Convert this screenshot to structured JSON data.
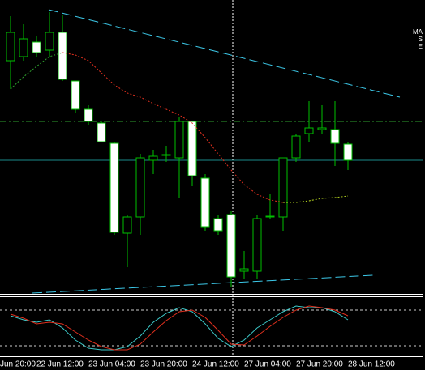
{
  "chart_data": [
    {
      "type": "candlestick",
      "categories": [
        "Jun 20:00",
        null,
        "22 Jun 12:00",
        null,
        null,
        null,
        "23 Jun 04:00",
        null,
        null,
        null,
        "23 Jun 20:00",
        null,
        null,
        null,
        "24 Jun 12:00",
        null,
        null,
        null,
        "27 Jun 04:00",
        null,
        null,
        null,
        "27 Jun 20:00",
        null,
        null,
        null,
        "28 Jun 12:00"
      ],
      "candles": [
        {
          "open": 287,
          "high": 342,
          "low": 252,
          "close": 322
        },
        {
          "open": 292,
          "high": 332,
          "low": 287,
          "close": 314
        },
        {
          "open": 310,
          "high": 317,
          "low": 292,
          "close": 297
        },
        {
          "open": 300,
          "high": 347,
          "low": 292,
          "close": 322
        },
        {
          "open": 322,
          "high": 344,
          "low": 262,
          "close": 264
        },
        {
          "open": 262,
          "high": 262,
          "low": 222,
          "close": 227
        },
        {
          "open": 227,
          "high": 232,
          "low": 207,
          "close": 212
        },
        {
          "open": 210,
          "high": 212,
          "low": 187,
          "close": 187
        },
        {
          "open": 185,
          "high": 187,
          "low": 72,
          "close": 75
        },
        {
          "open": 74,
          "high": 97,
          "low": 32,
          "close": 94
        },
        {
          "open": 94,
          "high": 172,
          "low": 72,
          "close": 167
        },
        {
          "open": 164,
          "high": 177,
          "low": 147,
          "close": 169
        },
        {
          "open": 170,
          "high": 182,
          "low": 162,
          "close": 171
        },
        {
          "open": 167,
          "high": 217,
          "low": 117,
          "close": 212
        },
        {
          "open": 212,
          "high": 212,
          "low": 132,
          "close": 145
        },
        {
          "open": 142,
          "high": 147,
          "low": 77,
          "close": 82
        },
        {
          "open": 92,
          "high": 97,
          "low": 72,
          "close": 77
        },
        {
          "open": 97,
          "high": 102,
          "low": 7,
          "close": 20
        },
        {
          "open": 27,
          "high": 52,
          "low": 17,
          "close": 30
        },
        {
          "open": 27,
          "high": 97,
          "low": 17,
          "close": 92
        },
        {
          "open": 94,
          "high": 122,
          "low": 92,
          "close": 95
        },
        {
          "open": 94,
          "high": 167,
          "low": 77,
          "close": 167
        },
        {
          "open": 167,
          "high": 197,
          "low": 162,
          "close": 194
        },
        {
          "open": 197,
          "high": 237,
          "low": 187,
          "close": 204
        },
        {
          "open": 202,
          "high": 232,
          "low": 197,
          "close": 204
        },
        {
          "open": 202,
          "high": 237,
          "low": 157,
          "close": 185
        },
        {
          "open": 184,
          "high": 187,
          "low": 152,
          "close": 164
        }
      ],
      "up_color": "#000000",
      "down_color": "#ffffff",
      "wick_color": "#00c000",
      "series": [
        {
          "color": "#2e9e2e",
          "values": [
            252,
            267,
            280,
            292,
            297,
            null,
            null,
            null,
            null,
            null,
            null,
            null,
            null,
            null,
            null,
            null,
            null,
            null,
            null,
            null,
            null,
            null,
            null,
            null,
            null,
            null,
            null
          ]
        },
        {
          "color": "#e0301e",
          "values": [
            null,
            null,
            null,
            null,
            297,
            294,
            287,
            272,
            257,
            247,
            242,
            234,
            227,
            220,
            210,
            192,
            172,
            152,
            134,
            122,
            115,
            112,
            null,
            null,
            null,
            null,
            null
          ]
        },
        {
          "color": "#b8d820",
          "values": [
            null,
            null,
            null,
            null,
            null,
            null,
            null,
            null,
            null,
            null,
            null,
            null,
            null,
            null,
            null,
            null,
            null,
            null,
            null,
            null,
            null,
            112,
            112,
            114,
            117,
            118,
            120
          ]
        }
      ],
      "ylim": [
        0,
        362
      ],
      "annotations": [
        "MA",
        "S",
        "E"
      ]
    },
    {
      "type": "line",
      "series": [
        {
          "color": "#3cc8c8",
          "values": [
            50,
            45,
            42,
            45,
            35,
            20,
            10,
            8,
            8,
            12,
            25,
            42,
            53,
            60,
            55,
            40,
            22,
            12,
            20,
            35,
            45,
            55,
            62,
            60,
            60,
            55,
            45
          ]
        },
        {
          "color": "#e0301e",
          "values": [
            52,
            47,
            40,
            42,
            40,
            30,
            20,
            12,
            8,
            8,
            15,
            30,
            44,
            55,
            57,
            48,
            32,
            15,
            14,
            25,
            37,
            48,
            57,
            62,
            60,
            57,
            50
          ]
        }
      ],
      "levels": [
        57,
        13
      ],
      "ylim": [
        0,
        73
      ]
    }
  ]
}
